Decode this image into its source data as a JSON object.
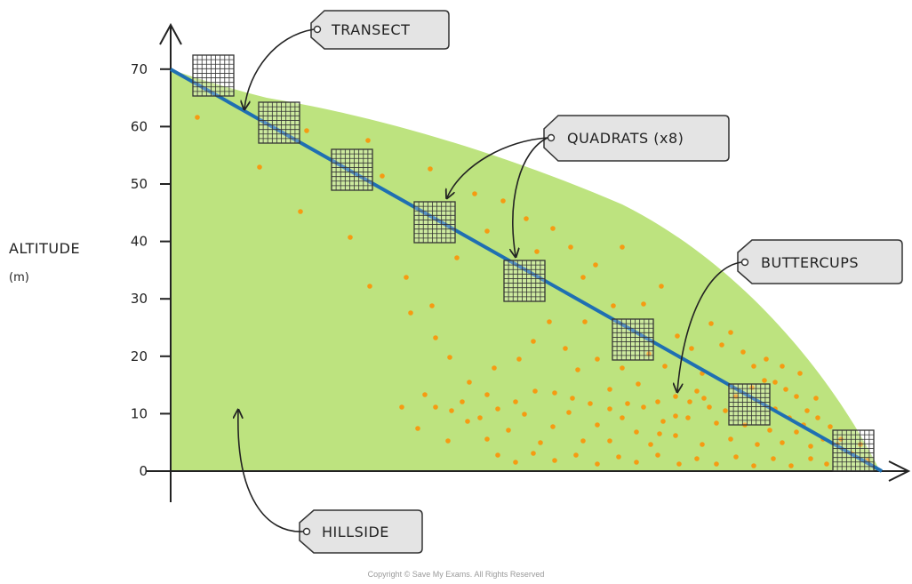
{
  "axis": {
    "y_title": "ALTITUDE",
    "y_unit": "(m)",
    "y_ticks": [
      "0",
      "10",
      "20",
      "30",
      "40",
      "50",
      "60",
      "70"
    ]
  },
  "labels": {
    "transect": "TRANSECT",
    "quadrats": "QUADRATS (x8)",
    "buttercups": "BUTTERCUPS",
    "hillside": "HILLSIDE"
  },
  "footer": {
    "copyright": "Copyright © Save My Exams. All Rights Reserved"
  },
  "colors": {
    "hillside": "#bde37f",
    "transect": "#1f6fb2",
    "buttercup": "#f59b12",
    "tag_fill": "#e4e4e4"
  }
}
